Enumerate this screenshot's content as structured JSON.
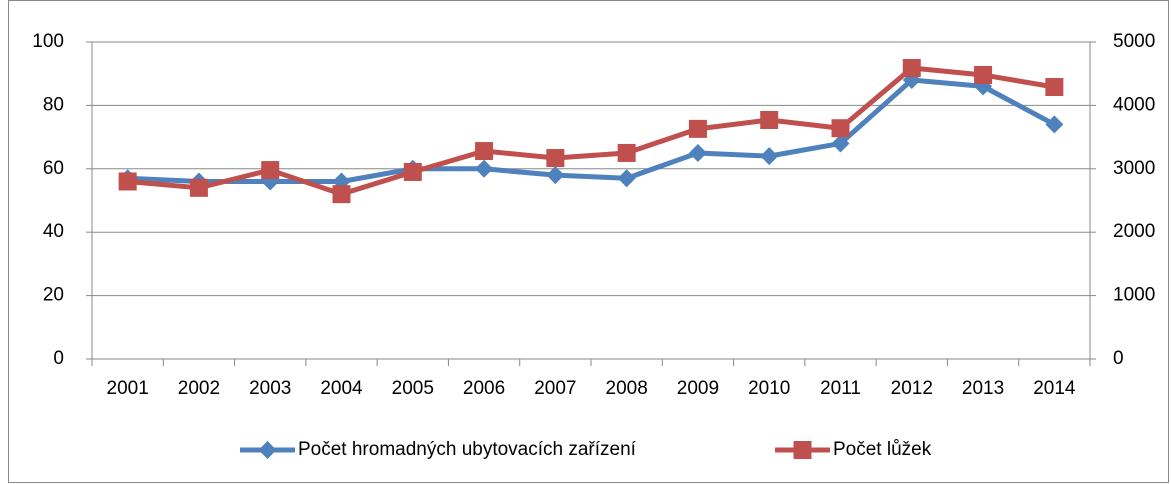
{
  "chart_data": {
    "type": "line",
    "categories": [
      "2001",
      "2002",
      "2003",
      "2004",
      "2005",
      "2006",
      "2007",
      "2008",
      "2009",
      "2010",
      "2011",
      "2012",
      "2013",
      "2014"
    ],
    "series": [
      {
        "name": "Počet hromadných ubytovacích zařízení",
        "color": "#4f81bd",
        "marker": "diamond",
        "values": [
          57,
          56,
          56,
          56,
          60,
          60,
          58,
          57,
          65,
          64,
          68,
          88,
          86,
          74
        ]
      },
      {
        "name": "Počet lůžek",
        "color": "#c0504d",
        "marker": "square",
        "axis": "y2",
        "values": [
          2800,
          2700,
          2980,
          2600,
          2950,
          3280,
          3170,
          3250,
          3630,
          3770,
          3640,
          4590,
          4480,
          4290
        ]
      }
    ],
    "ylim": [
      0,
      100
    ],
    "yticks": [
      0,
      20,
      40,
      60,
      80,
      100
    ],
    "y2lim": [
      0,
      5000
    ],
    "y2ticks": [
      0,
      1000,
      2000,
      3000,
      4000,
      5000
    ],
    "grid": true,
    "legend": "bottom"
  }
}
